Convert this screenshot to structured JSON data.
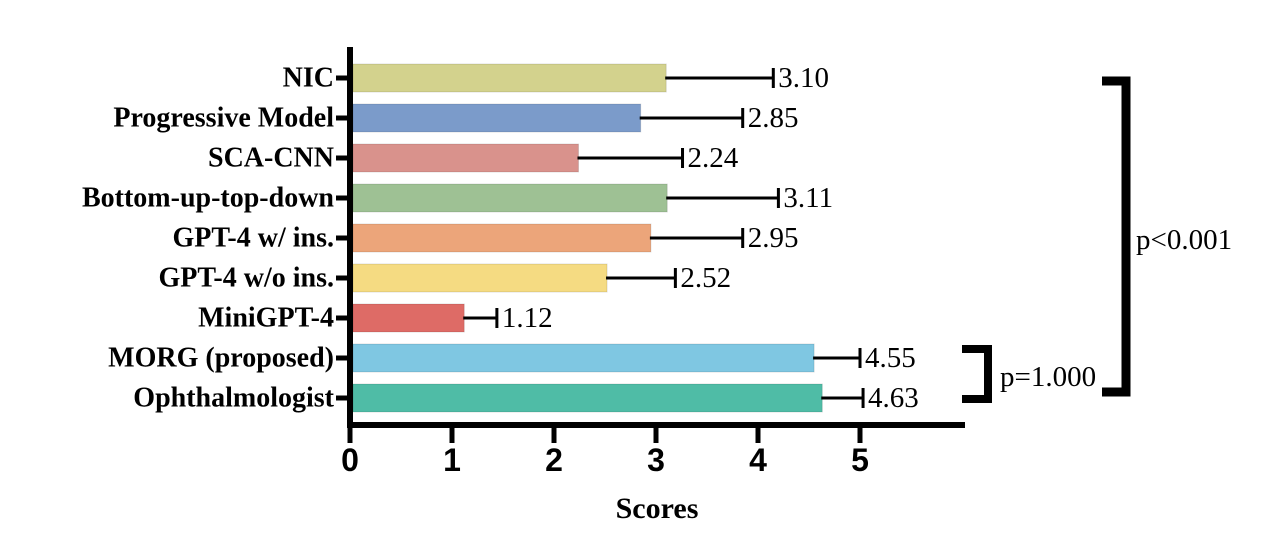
{
  "figure": {
    "background": "#ffffff",
    "axis_color": "#000000",
    "text_color": "#000000"
  },
  "chart_data": {
    "type": "bar",
    "orientation": "horizontal",
    "title": "",
    "xlabel": "Scores",
    "ylabel": "",
    "xlim": [
      0,
      6
    ],
    "x_ticks": [
      "0",
      "1",
      "2",
      "3",
      "4",
      "5"
    ],
    "grid": false,
    "legend": null,
    "categories": [
      "NIC",
      "Progressive Model",
      "SCA-CNN",
      "Bottom-up-top-down",
      "GPT-4 w/ ins.",
      "GPT-4 w/o ins.",
      "MiniGPT-4",
      "MORG (proposed)",
      "Ophthalmologist"
    ],
    "values": [
      3.1,
      2.85,
      2.24,
      3.11,
      2.95,
      2.52,
      1.12,
      4.55,
      4.63
    ],
    "value_labels": [
      "3.10",
      "2.85",
      "2.24",
      "3.11",
      "2.95",
      "2.52",
      "1.12",
      "4.55",
      "4.63"
    ],
    "errors_plus": [
      1.05,
      1.0,
      1.02,
      1.09,
      0.9,
      0.67,
      0.32,
      0.45,
      0.4
    ],
    "bar_colors": [
      "#d3d28d",
      "#7b9bca",
      "#d9928c",
      "#9ec194",
      "#eca57a",
      "#f5db82",
      "#de6b66",
      "#7fc7e2",
      "#4fbca6"
    ],
    "significance": [
      {
        "label": "p=1.000",
        "from": "MORG (proposed)",
        "to": "Ophthalmologist"
      },
      {
        "label": "p<0.001",
        "from": "NIC",
        "to": "Ophthalmologist"
      }
    ]
  }
}
